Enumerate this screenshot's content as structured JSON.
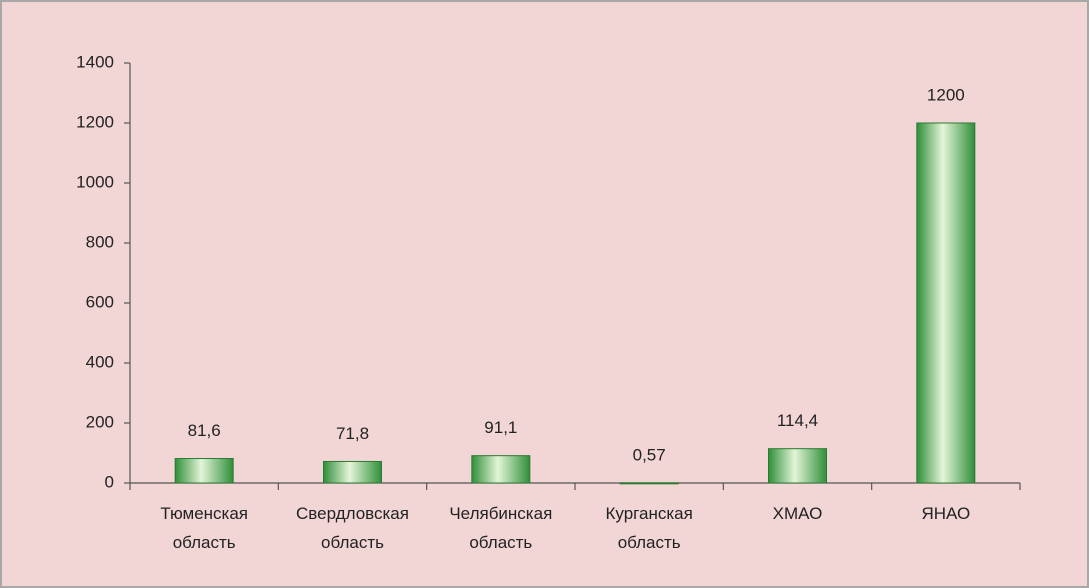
{
  "chart_data": {
    "type": "bar",
    "categories": [
      "Тюменская область",
      "Свердловская область",
      "Челябинская область",
      "Курганская область",
      "ХМАО",
      "ЯНАО"
    ],
    "values": [
      81.6,
      71.8,
      91.1,
      0.57,
      114.4,
      1200
    ],
    "value_labels": [
      "81,6",
      "71,8",
      "91,1",
      "0,57",
      "114,4",
      "1200"
    ],
    "color": "#2f8f3a",
    "ylim": [
      0,
      1400
    ],
    "yticks": [
      0,
      200,
      400,
      600,
      800,
      1000,
      1200,
      1400
    ],
    "grid": false
  }
}
